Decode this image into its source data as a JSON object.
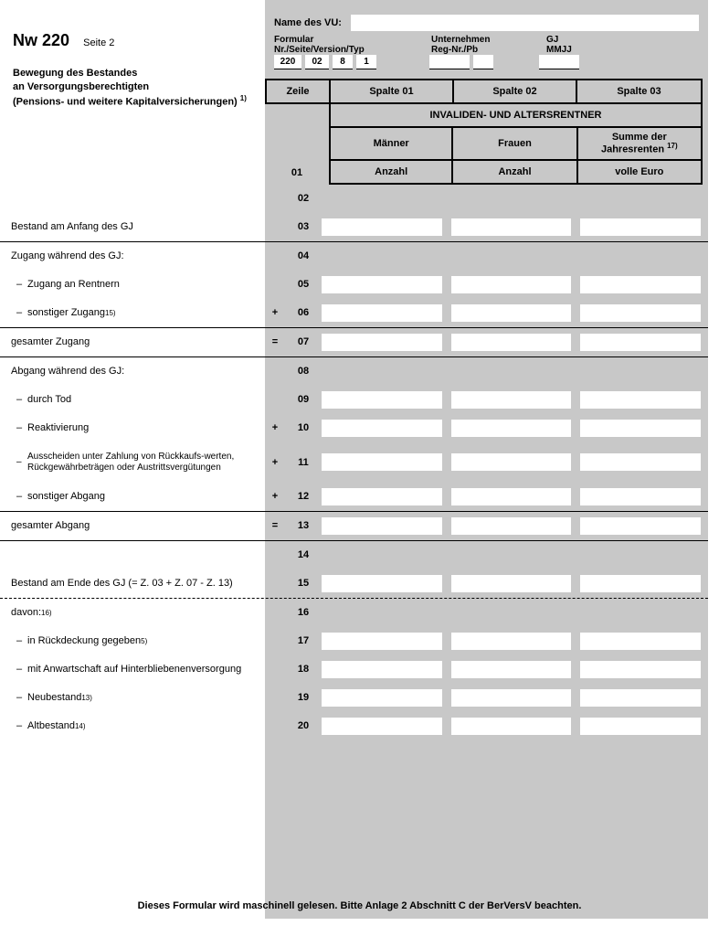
{
  "header": {
    "form_code": "Nw 220",
    "page_label": "Seite 2",
    "subtitle_l1": "Bewegung des Bestandes",
    "subtitle_l2": "an Versorgungsberechtigten",
    "subtitle_l3": "(Pensions- und weitere Kapitalversicherungen)",
    "subtitle_sup": "1)"
  },
  "top": {
    "vu_label": "Name des VU:",
    "formular_label": "Formular",
    "formular_sub": "Nr./Seite/Version/Typ",
    "unternehmen_label": "Unternehmen",
    "unternehmen_sub": "Reg-Nr./Pb",
    "gj_label": "GJ",
    "gj_sub": "MMJJ",
    "box_nr": "220",
    "box_seite": "02",
    "box_version": "8",
    "box_typ": "1"
  },
  "cols": {
    "zeile": "Zeile",
    "s01": "Spalte 01",
    "s02": "Spalte 02",
    "s03": "Spalte 03",
    "span": "INVALIDEN- UND ALTERSRENTNER",
    "sub1": "Männer",
    "sub2": "Frauen",
    "sub3a": "Summe der",
    "sub3b": "Jahresrenten",
    "sub3sup": "17)",
    "row01": "01",
    "u1": "Anzahl",
    "u2": "Anzahl",
    "u3": "volle Euro"
  },
  "rows": [
    {
      "n": "02",
      "label": "",
      "sign": "",
      "inputs": false,
      "rule": false
    },
    {
      "n": "03",
      "label": "Bestand am Anfang des GJ",
      "sign": "",
      "inputs": true,
      "rule": "after"
    },
    {
      "n": "04",
      "label": "Zugang während des GJ:",
      "sign": "",
      "inputs": false,
      "rule": false
    },
    {
      "n": "05",
      "label": "Zugang an Rentnern",
      "indent": true,
      "sign": "",
      "inputs": true,
      "rule": false
    },
    {
      "n": "06",
      "label": "sonstiger Zugang",
      "sup": "15)",
      "indent": true,
      "sign": "+",
      "inputs": true,
      "rule": "after"
    },
    {
      "n": "07",
      "label": "gesamter Zugang",
      "sign": "=",
      "inputs": true,
      "rule": "after"
    },
    {
      "n": "08",
      "label": "Abgang während des GJ:",
      "sign": "",
      "inputs": false,
      "rule": false
    },
    {
      "n": "09",
      "label": "durch Tod",
      "indent": true,
      "sign": "",
      "inputs": true,
      "rule": false
    },
    {
      "n": "10",
      "label": "Reaktivierung",
      "indent": true,
      "sign": "+",
      "inputs": true,
      "rule": false
    },
    {
      "n": "11",
      "label": "Ausscheiden unter Zahlung von Rückkaufs-werten, Rückgewährbeträgen oder Austrittsvergütungen",
      "indent": "plain",
      "sign": "+",
      "inputs": true,
      "rule": false,
      "tall": true
    },
    {
      "n": "12",
      "label": "sonstiger Abgang",
      "indent": true,
      "sign": "+",
      "inputs": true,
      "rule": "after"
    },
    {
      "n": "13",
      "label": "gesamter Abgang",
      "sign": "=",
      "inputs": true,
      "rule": "after"
    },
    {
      "n": "14",
      "label": "",
      "sign": "",
      "inputs": false,
      "rule": false
    },
    {
      "n": "15",
      "label": "Bestand am Ende des GJ (= Z. 03 + Z. 07 - Z. 13)",
      "sign": "",
      "inputs": true,
      "rule": "after-dashed"
    },
    {
      "n": "16",
      "label": "davon:",
      "sup": "16)",
      "sign": "",
      "inputs": false,
      "rule": false
    },
    {
      "n": "17",
      "label": "in Rückdeckung gegeben",
      "sup": "5)",
      "indent": true,
      "sign": "",
      "inputs": true,
      "rule": false
    },
    {
      "n": "18",
      "label": "mit Anwartschaft auf Hinterbliebenenversorgung",
      "indent": true,
      "sign": "",
      "inputs": true,
      "rule": false
    },
    {
      "n": "19",
      "label": "Neubestand",
      "sup": "13)",
      "indent": true,
      "sign": "",
      "inputs": true,
      "rule": false
    },
    {
      "n": "20",
      "label": "Altbestand",
      "sup": "14)",
      "indent": true,
      "sign": "",
      "inputs": true,
      "rule": false
    }
  ],
  "footer": "Dieses Formular wird maschinell gelesen. Bitte Anlage 2 Abschnitt C der BerVersV beachten."
}
